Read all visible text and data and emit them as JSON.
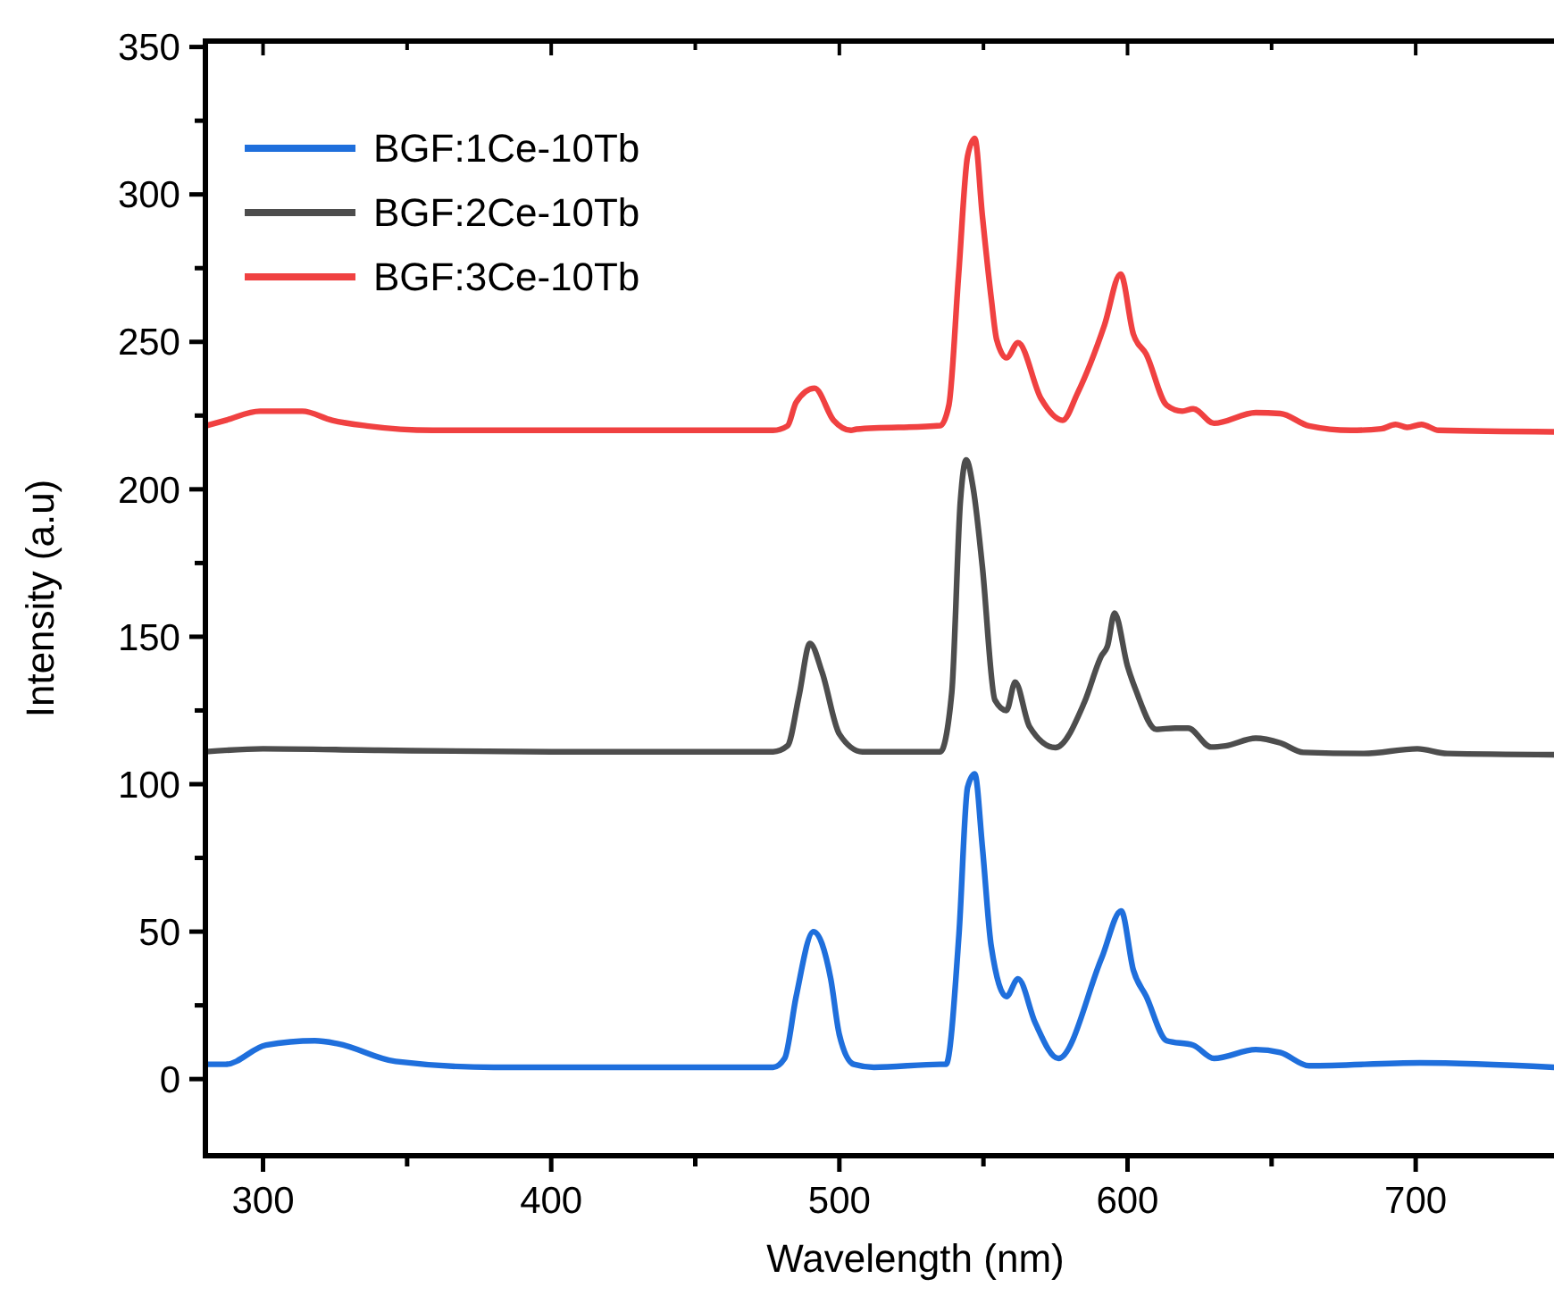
{
  "chart_data": {
    "type": "line",
    "xlabel": "Wavelength (nm)",
    "ylabel": "Intensity (a.u)",
    "xlim": [
      280,
      748
    ],
    "ylim": [
      -26,
      352
    ],
    "xticks": [
      300,
      {
        "value": 350,
        "label": null
      },
      400,
      {
        "value": 450,
        "label": null
      },
      500,
      {
        "value": 550,
        "label": null
      },
      600,
      {
        "value": 650,
        "label": null
      },
      700
    ],
    "yticks": [
      0,
      {
        "value": 25,
        "label": null
      },
      50,
      {
        "value": 75,
        "label": null
      },
      100,
      {
        "value": 125,
        "label": null
      },
      150,
      {
        "value": 175,
        "label": null
      },
      200,
      {
        "value": 225,
        "label": null
      },
      250,
      {
        "value": 275,
        "label": null
      },
      300,
      {
        "value": 325,
        "label": null
      },
      350
    ],
    "grid": false,
    "legend": "top left",
    "marker": "none",
    "line_style": "solid",
    "series": [
      {
        "name": "BGF:1Ce-10Tb",
        "color": "#1f6fdc",
        "x": [
          280,
          287,
          301,
          318,
          326,
          346,
          380,
          477,
          481,
          485,
          491,
          497,
          500,
          505,
          512,
          535,
          537,
          541.5,
          544.5,
          547,
          549.6,
          552.7,
          558,
          562,
          568,
          576,
          591,
          597.8,
          602,
          606.5,
          613.6,
          622.8,
          630,
          644.5,
          653,
          663,
          701.5,
          748
        ],
        "values": [
          5,
          5,
          11.5,
          13,
          12,
          6,
          4,
          4,
          7,
          28,
          50,
          34,
          15,
          5,
          4,
          5,
          5,
          49,
          99,
          103.5,
          79,
          45,
          28,
          34,
          19,
          7,
          41,
          57,
          37,
          28,
          13,
          11.5,
          7,
          10,
          9,
          4.5,
          5.5,
          4
        ]
      },
      {
        "name": "BGF:2Ce-10Tb",
        "color": "#4d4d4d",
        "x": [
          280,
          300,
          340,
          400,
          477,
          482,
          486,
          489.8,
          494,
          500,
          508,
          535,
          539,
          542,
          544,
          546.5,
          549.6,
          554,
          558,
          561,
          566,
          575,
          585,
          591,
          593,
          595.5,
          600,
          603,
          610,
          616.5,
          621,
          629,
          634,
          644.5,
          653,
          661,
          682,
          700.6,
          711,
          748
        ],
        "values": [
          111,
          112,
          111.5,
          111,
          111,
          113,
          130,
          147.7,
          138,
          117,
          111,
          111,
          131,
          196,
          210,
          200,
          174,
          128.5,
          125,
          134.6,
          119.5,
          112.4,
          127.7,
          143.6,
          146.7,
          158,
          140,
          131.6,
          118.6,
          119,
          119,
          112.6,
          113,
          115.6,
          114,
          110.8,
          110.4,
          112,
          110.4,
          110
        ]
      },
      {
        "name": "BGF:3Ce-10Tb",
        "color": "#f04141",
        "x": [
          280,
          287,
          299,
          313.6,
          324,
          336,
          359,
          477,
          482,
          485,
          491.4,
          498,
          504,
          506,
          535,
          538,
          541.4,
          544.5,
          547,
          549.6,
          552.7,
          554.6,
          558,
          562,
          570,
          577.5,
          582.6,
          592,
          597.6,
          602,
          606.5,
          613.6,
          619,
          622.8,
          630,
          644.5,
          653,
          663,
          677.5,
          688,
          693,
          697,
          702,
          708,
          748
        ],
        "values": [
          221.5,
          223.4,
          226.5,
          226.5,
          223.4,
          221.5,
          220,
          220,
          221.5,
          229.5,
          234.3,
          223.4,
          220,
          220.4,
          221.6,
          228.5,
          273,
          313,
          319,
          293,
          264.8,
          250.7,
          244.6,
          249.7,
          230.7,
          223.4,
          232.5,
          255.7,
          273,
          252.7,
          245.8,
          228.5,
          226.5,
          227.3,
          222.4,
          226,
          225.7,
          221.5,
          220,
          220.5,
          222,
          221,
          222,
          220,
          219.5
        ]
      }
    ]
  }
}
